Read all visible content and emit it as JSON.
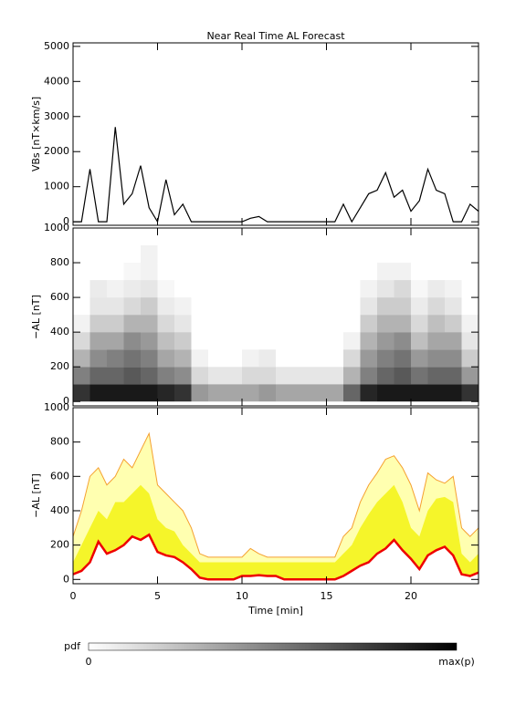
{
  "chart_data": [
    {
      "type": "line",
      "title": "Near Real Time AL Forecast",
      "y_label": "VBs [nT×km/s]",
      "xlim": [
        0,
        24
      ],
      "xticks": [
        0,
        5,
        10,
        15,
        20
      ],
      "ylim": [
        -100,
        5100
      ],
      "yticks": [
        0,
        1000,
        2000,
        3000,
        4000,
        5000
      ],
      "x": [
        0,
        0.5,
        1,
        1.5,
        2,
        2.5,
        3,
        3.5,
        4,
        4.5,
        5,
        5.5,
        6,
        6.5,
        7,
        7.5,
        8,
        8.5,
        9,
        9.5,
        10,
        10.5,
        11,
        11.5,
        12,
        12.5,
        13,
        13.5,
        14,
        14.5,
        15,
        15.5,
        16,
        16.5,
        17,
        17.5,
        18,
        18.5,
        19,
        19.5,
        20,
        20.5,
        21,
        21.5,
        22,
        22.5,
        23,
        23.5,
        24
      ],
      "color": "#000000",
      "values": [
        0,
        0,
        1500,
        0,
        0,
        2700,
        500,
        800,
        1600,
        400,
        0,
        1200,
        200,
        500,
        0,
        0,
        0,
        0,
        0,
        0,
        0,
        100,
        150,
        0,
        0,
        0,
        0,
        0,
        0,
        0,
        0,
        0,
        500,
        0,
        400,
        800,
        900,
        1400,
        700,
        900,
        300,
        600,
        1500,
        900,
        800,
        0,
        0,
        500,
        300
      ]
    },
    {
      "type": "heatmap",
      "y_label": "−AL [nT]",
      "xlim": [
        0,
        24
      ],
      "xticks": [
        0,
        5,
        10,
        15,
        20
      ],
      "ylim": [
        -25,
        1000
      ],
      "yticks": [
        0,
        200,
        400,
        600,
        800,
        1000
      ],
      "xbins": [
        0,
        1,
        2,
        3,
        4,
        5,
        6,
        7,
        8,
        9,
        10,
        11,
        12,
        13,
        14,
        15,
        16,
        17,
        18,
        19,
        20,
        21,
        22,
        23,
        24
      ],
      "ybins": [
        0,
        100,
        200,
        300,
        400,
        500,
        600,
        700,
        800,
        900,
        1000
      ],
      "z": [
        [
          0.8,
          0.9,
          0.9,
          0.9,
          0.9,
          0.85,
          0.8,
          0.4,
          0.35,
          0.35,
          0.35,
          0.4,
          0.35,
          0.35,
          0.35,
          0.35,
          0.6,
          0.85,
          0.9,
          0.9,
          0.9,
          0.9,
          0.9,
          0.8
        ],
        [
          0.5,
          0.6,
          0.6,
          0.65,
          0.6,
          0.5,
          0.45,
          0.15,
          0.1,
          0.1,
          0.15,
          0.15,
          0.1,
          0.1,
          0.1,
          0.1,
          0.3,
          0.5,
          0.6,
          0.65,
          0.55,
          0.6,
          0.6,
          0.4
        ],
        [
          0.3,
          0.45,
          0.5,
          0.55,
          0.5,
          0.35,
          0.3,
          0.05,
          0,
          0,
          0.05,
          0.08,
          0,
          0,
          0,
          0,
          0.15,
          0.4,
          0.5,
          0.55,
          0.4,
          0.45,
          0.45,
          0.2
        ],
        [
          0.15,
          0.35,
          0.35,
          0.45,
          0.4,
          0.25,
          0.2,
          0,
          0,
          0,
          0,
          0,
          0,
          0,
          0,
          0,
          0.05,
          0.3,
          0.4,
          0.45,
          0.25,
          0.35,
          0.35,
          0.1
        ],
        [
          0.05,
          0.2,
          0.2,
          0.3,
          0.3,
          0.15,
          0.1,
          0,
          0,
          0,
          0,
          0,
          0,
          0,
          0,
          0,
          0,
          0.2,
          0.3,
          0.3,
          0.15,
          0.25,
          0.2,
          0.05
        ],
        [
          0,
          0.1,
          0.1,
          0.15,
          0.2,
          0.08,
          0.05,
          0,
          0,
          0,
          0,
          0,
          0,
          0,
          0,
          0,
          0,
          0.1,
          0.2,
          0.2,
          0.08,
          0.15,
          0.1,
          0
        ],
        [
          0,
          0.08,
          0.05,
          0.08,
          0.1,
          0.03,
          0,
          0,
          0,
          0,
          0,
          0,
          0,
          0,
          0,
          0,
          0,
          0.05,
          0.1,
          0.15,
          0.03,
          0.08,
          0.05,
          0
        ],
        [
          0,
          0,
          0,
          0.03,
          0.05,
          0,
          0,
          0,
          0,
          0,
          0,
          0,
          0,
          0,
          0,
          0,
          0,
          0,
          0.05,
          0.05,
          0,
          0,
          0,
          0
        ],
        [
          0,
          0,
          0,
          0,
          0.05,
          0,
          0,
          0,
          0,
          0,
          0,
          0,
          0,
          0,
          0,
          0,
          0,
          0,
          0,
          0,
          0,
          0,
          0,
          0
        ],
        [
          0,
          0,
          0,
          0,
          0,
          0,
          0,
          0,
          0,
          0,
          0,
          0,
          0,
          0,
          0,
          0,
          0,
          0,
          0,
          0,
          0,
          0,
          0,
          0
        ]
      ]
    },
    {
      "type": "band",
      "y_label": "−AL [nT]",
      "x_label": "Time [min]",
      "xlim": [
        0,
        24
      ],
      "xticks": [
        0,
        5,
        10,
        15,
        20
      ],
      "ylim": [
        -25,
        1000
      ],
      "yticks": [
        0,
        200,
        400,
        600,
        800,
        1000
      ],
      "x": [
        0,
        0.5,
        1,
        1.5,
        2,
        2.5,
        3,
        3.5,
        4,
        4.5,
        5,
        5.5,
        6,
        6.5,
        7,
        7.5,
        8,
        8.5,
        9,
        9.5,
        10,
        10.5,
        11,
        11.5,
        12,
        12.5,
        13,
        13.5,
        14,
        14.5,
        15,
        15.5,
        16,
        16.5,
        17,
        17.5,
        18,
        18.5,
        19,
        19.5,
        20,
        20.5,
        21,
        21.5,
        22,
        22.5,
        23,
        23.5,
        24
      ],
      "bands": [
        {
          "color": "#ffffb0",
          "values": [
            250,
            400,
            600,
            650,
            550,
            600,
            700,
            650,
            750,
            850,
            550,
            500,
            450,
            400,
            300,
            150,
            130,
            130,
            130,
            130,
            130,
            180,
            150,
            130,
            130,
            130,
            130,
            130,
            130,
            130,
            130,
            130,
            250,
            300,
            450,
            550,
            620,
            700,
            720,
            650,
            550,
            400,
            620,
            580,
            560,
            600,
            300,
            250,
            300
          ]
        },
        {
          "color": "#f5f52a",
          "values": [
            100,
            200,
            300,
            400,
            350,
            450,
            450,
            500,
            550,
            500,
            350,
            300,
            280,
            200,
            150,
            100,
            100,
            100,
            100,
            100,
            100,
            100,
            100,
            100,
            100,
            100,
            100,
            100,
            100,
            100,
            100,
            100,
            150,
            200,
            300,
            380,
            450,
            500,
            550,
            450,
            300,
            250,
            400,
            470,
            480,
            450,
            150,
            100,
            150
          ]
        }
      ],
      "series": [
        {
          "color": "#f5a030",
          "values": [
            250,
            400,
            600,
            650,
            550,
            600,
            700,
            650,
            750,
            850,
            550,
            500,
            450,
            400,
            300,
            150,
            130,
            130,
            130,
            130,
            130,
            180,
            150,
            130,
            130,
            130,
            130,
            130,
            130,
            130,
            130,
            130,
            250,
            300,
            450,
            550,
            620,
            700,
            720,
            650,
            550,
            400,
            620,
            580,
            560,
            600,
            300,
            250,
            300
          ]
        },
        {
          "color": "#ee0000",
          "values": [
            30,
            50,
            100,
            220,
            150,
            170,
            200,
            250,
            230,
            260,
            160,
            140,
            130,
            100,
            60,
            10,
            0,
            0,
            0,
            0,
            20,
            20,
            25,
            20,
            20,
            0,
            0,
            0,
            0,
            0,
            0,
            0,
            20,
            50,
            80,
            100,
            150,
            180,
            230,
            170,
            120,
            60,
            140,
            170,
            190,
            140,
            30,
            20,
            40
          ]
        }
      ]
    }
  ],
  "colorbar": {
    "title": "pdf",
    "min_label": "0",
    "max_label": "max(p)"
  }
}
